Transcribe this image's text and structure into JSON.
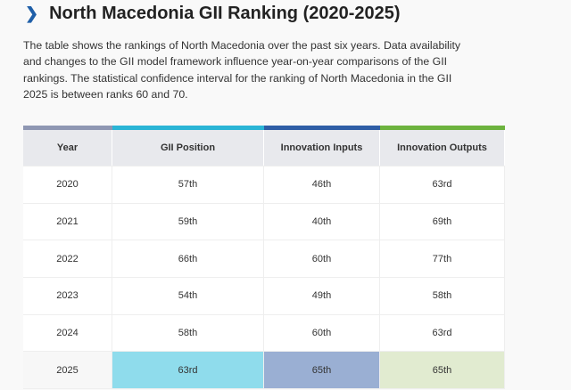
{
  "title": "North Macedonia GII Ranking (2020-2025)",
  "description": "The table shows the rankings of North Macedonia over the past six years. Data availability and changes to the GII model framework influence year-on-year comparisons of the GII rankings. The statistical confidence interval for the ranking of North Macedonia in the GII 2025 is between ranks 60 and 70.",
  "colors": {
    "year": "#8f97b3",
    "gii": "#2bb5d6",
    "inputs": "#2f5ea6",
    "outputs": "#6db33f",
    "highlight_gii": "#8fdcec",
    "highlight_inputs": "#9aafd3",
    "highlight_outputs": "#e1ebd0"
  },
  "table": {
    "headers": [
      "Year",
      "GII Position",
      "Innovation Inputs",
      "Innovation Outputs"
    ],
    "rows": [
      [
        "2020",
        "57th",
        "46th",
        "63rd"
      ],
      [
        "2021",
        "59th",
        "40th",
        "69th"
      ],
      [
        "2022",
        "66th",
        "60th",
        "77th"
      ],
      [
        "2023",
        "54th",
        "49th",
        "58th"
      ],
      [
        "2024",
        "58th",
        "60th",
        "63rd"
      ],
      [
        "2025",
        "63rd",
        "65th",
        "65th"
      ]
    ]
  }
}
